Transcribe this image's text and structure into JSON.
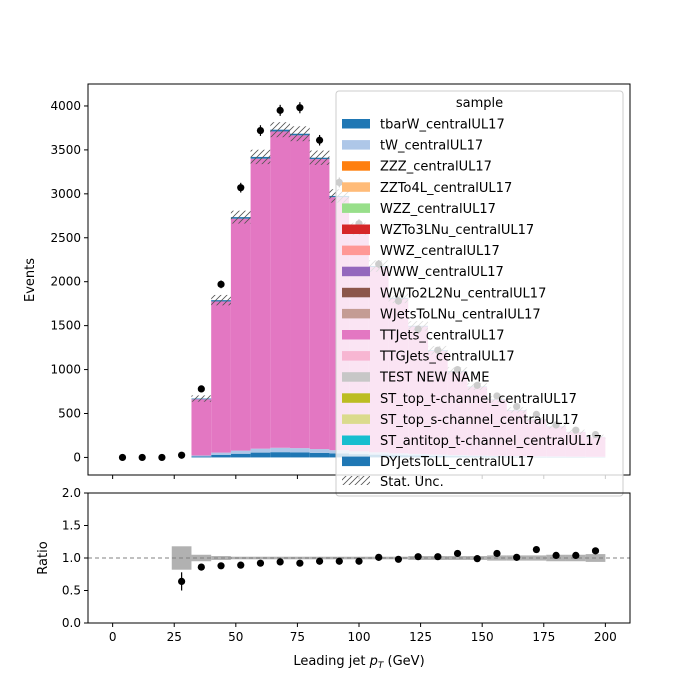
{
  "chart_data": [
    {
      "type": "bar",
      "stacked": true,
      "xlabel": "Leading jet  p_T (GeV)",
      "xlabel_main": "Leading jet  ",
      "xlabel_p": "p",
      "xlabel_sub": "T",
      "xlabel_unit": " (GeV)",
      "ylabel": "Events",
      "xlim": [
        -10,
        210
      ],
      "ylim": [
        -200,
        4250
      ],
      "xticks": [
        0,
        25,
        50,
        75,
        100,
        125,
        150,
        175,
        200
      ],
      "yticks": [
        0,
        500,
        1000,
        1500,
        2000,
        2500,
        3000,
        3500,
        4000
      ],
      "legend_title": "sample",
      "legend_placement": "top-right",
      "bin_edges": [
        0,
        8,
        16,
        24,
        32,
        40,
        48,
        56,
        64,
        72,
        80,
        88,
        96,
        104,
        112,
        120,
        128,
        136,
        144,
        152,
        160,
        168,
        176,
        184,
        192,
        200
      ],
      "series": [
        {
          "name": "tbarW_centralUL17",
          "color": "#1f77b4",
          "values": [
            0,
            0,
            0,
            0,
            12,
            30,
            42,
            55,
            60,
            58,
            52,
            45,
            38,
            32,
            26,
            22,
            18,
            15,
            12,
            10,
            8,
            7,
            6,
            5,
            4
          ]
        },
        {
          "name": "tW_centralUL17",
          "color": "#aec7e8",
          "values": [
            0,
            0,
            0,
            0,
            10,
            25,
            35,
            45,
            50,
            48,
            43,
            37,
            31,
            26,
            21,
            18,
            15,
            12,
            10,
            8,
            7,
            6,
            5,
            4,
            3
          ]
        },
        {
          "name": "ZZZ_centralUL17",
          "color": "#ff7f0e",
          "values": [
            0,
            0,
            0,
            0,
            0,
            0,
            0,
            0,
            0,
            0,
            0,
            0,
            0,
            0,
            0,
            0,
            0,
            0,
            0,
            0,
            0,
            0,
            0,
            0,
            0
          ]
        },
        {
          "name": "ZZTo4L_centralUL17",
          "color": "#ffbb78",
          "values": [
            0,
            0,
            0,
            0,
            0,
            0,
            0,
            0,
            0,
            0,
            0,
            0,
            0,
            0,
            0,
            0,
            0,
            0,
            0,
            0,
            0,
            0,
            0,
            0,
            0
          ]
        },
        {
          "name": "WZZ_centralUL17",
          "color": "#98df8a",
          "values": [
            0,
            0,
            0,
            0,
            0,
            0,
            0,
            0,
            0,
            0,
            0,
            0,
            0,
            0,
            0,
            0,
            0,
            0,
            0,
            0,
            0,
            0,
            0,
            0,
            0
          ]
        },
        {
          "name": "WZTo3LNu_centralUL17",
          "color": "#d62728",
          "values": [
            0,
            0,
            0,
            0,
            0,
            0,
            0,
            0,
            0,
            0,
            0,
            0,
            0,
            0,
            0,
            0,
            0,
            0,
            0,
            0,
            0,
            0,
            0,
            0,
            0
          ]
        },
        {
          "name": "WWZ_centralUL17",
          "color": "#ff9896",
          "values": [
            0,
            0,
            0,
            0,
            0,
            0,
            0,
            0,
            0,
            0,
            0,
            0,
            0,
            0,
            0,
            0,
            0,
            0,
            0,
            0,
            0,
            0,
            0,
            0,
            0
          ]
        },
        {
          "name": "WWW_centralUL17",
          "color": "#9467bd",
          "values": [
            0,
            0,
            0,
            0,
            0,
            0,
            0,
            0,
            0,
            0,
            0,
            0,
            0,
            0,
            0,
            0,
            0,
            0,
            0,
            0,
            0,
            0,
            0,
            0,
            0
          ]
        },
        {
          "name": "WWTo2L2Nu_centralUL17",
          "color": "#8c564b",
          "values": [
            0,
            0,
            0,
            0,
            0,
            0,
            0,
            0,
            0,
            0,
            0,
            0,
            0,
            0,
            0,
            0,
            0,
            0,
            0,
            0,
            0,
            0,
            0,
            0,
            0
          ]
        },
        {
          "name": "WJetsToLNu_centralUL17",
          "color": "#c49c94",
          "values": [
            0,
            0,
            0,
            0,
            0,
            0,
            0,
            0,
            0,
            0,
            0,
            0,
            0,
            0,
            0,
            0,
            0,
            0,
            0,
            0,
            0,
            0,
            0,
            0,
            0
          ]
        },
        {
          "name": "TTJets_centralUL17",
          "color": "#e377c2",
          "values": [
            0,
            0,
            0,
            0,
            640,
            1720,
            2640,
            3300,
            3600,
            3560,
            3300,
            2880,
            2520,
            2110,
            1760,
            1450,
            1180,
            950,
            780,
            640,
            520,
            420,
            340,
            280,
            225
          ]
        },
        {
          "name": "TTGJets_centralUL17",
          "color": "#f7b6d2",
          "values": [
            0,
            0,
            0,
            0,
            0,
            0,
            0,
            0,
            0,
            0,
            0,
            0,
            0,
            0,
            0,
            0,
            0,
            0,
            0,
            0,
            0,
            0,
            0,
            0,
            0
          ]
        },
        {
          "name": "TEST NEW NAME",
          "color": "#c7c7c7",
          "values": [
            0,
            0,
            0,
            0,
            0,
            0,
            0,
            0,
            0,
            0,
            0,
            0,
            0,
            0,
            0,
            0,
            0,
            0,
            0,
            0,
            0,
            0,
            0,
            0,
            0
          ]
        },
        {
          "name": "ST_top_t-channel_centralUL17",
          "color": "#bcbd22",
          "values": [
            0,
            0,
            0,
            0,
            0,
            0,
            0,
            0,
            0,
            0,
            0,
            0,
            0,
            0,
            0,
            0,
            0,
            0,
            0,
            0,
            0,
            0,
            0,
            0,
            0
          ]
        },
        {
          "name": "ST_top_s-channel_centralUL17",
          "color": "#dbdb8d",
          "values": [
            0,
            0,
            0,
            0,
            0,
            0,
            0,
            0,
            0,
            0,
            0,
            0,
            0,
            0,
            0,
            0,
            0,
            0,
            0,
            0,
            0,
            0,
            0,
            0,
            0
          ]
        },
        {
          "name": "ST_antitop_t-channel_centralUL17",
          "color": "#17becf",
          "values": [
            0,
            0,
            0,
            0,
            0,
            0,
            0,
            0,
            0,
            0,
            0,
            0,
            0,
            0,
            0,
            0,
            0,
            0,
            0,
            0,
            0,
            0,
            0,
            0,
            0
          ]
        },
        {
          "name": "DYJetsToLL_centralUL17",
          "color": "#1f77b4",
          "values": [
            0,
            0,
            0,
            0,
            8,
            15,
            18,
            20,
            20,
            18,
            16,
            14,
            12,
            10,
            9,
            8,
            7,
            6,
            5,
            4,
            4,
            3,
            3,
            2,
            2
          ]
        }
      ],
      "stat_unc_label": "Stat. Unc.",
      "data_points": {
        "x": [
          4,
          12,
          20,
          28,
          36,
          44,
          52,
          60,
          68,
          76,
          84,
          92,
          100,
          108,
          116,
          124,
          132,
          140,
          148,
          156,
          164,
          172,
          180,
          188,
          196
        ],
        "y": [
          0,
          0,
          0,
          25,
          780,
          1970,
          3070,
          3720,
          3950,
          3980,
          3610,
          3130,
          2660,
          2200,
          1780,
          1460,
          1220,
          1000,
          820,
          700,
          580,
          490,
          370,
          310,
          260
        ]
      }
    },
    {
      "type": "scatter",
      "ylabel": "Ratio",
      "xlim": [
        -10,
        210
      ],
      "ylim": [
        0,
        2
      ],
      "xticks": [
        0,
        25,
        50,
        75,
        100,
        125,
        150,
        175,
        200
      ],
      "yticks": [
        0.0,
        0.5,
        1.0,
        1.5,
        2.0
      ],
      "reference_line": 1.0,
      "x": [
        28,
        36,
        44,
        52,
        60,
        68,
        76,
        84,
        92,
        100,
        108,
        116,
        124,
        132,
        140,
        148,
        156,
        164,
        172,
        180,
        188,
        196
      ],
      "y": [
        0.64,
        0.86,
        0.88,
        0.89,
        0.92,
        0.94,
        0.92,
        0.95,
        0.95,
        0.95,
        1.01,
        0.98,
        1.02,
        1.02,
        1.07,
        0.99,
        1.07,
        1.01,
        1.13,
        1.04,
        1.04,
        1.11
      ],
      "yerr": [
        0.14,
        0.03,
        0.02,
        0.02,
        0.02,
        0.02,
        0.02,
        0.02,
        0.02,
        0.02,
        0.02,
        0.02,
        0.03,
        0.03,
        0.03,
        0.03,
        0.03,
        0.04,
        0.04,
        0.04,
        0.05,
        0.05
      ],
      "mc_unc": [
        0.18,
        0.05,
        0.03,
        0.02,
        0.02,
        0.02,
        0.02,
        0.02,
        0.02,
        0.02,
        0.02,
        0.02,
        0.03,
        0.03,
        0.03,
        0.03,
        0.04,
        0.04,
        0.04,
        0.05,
        0.05,
        0.06
      ]
    }
  ]
}
